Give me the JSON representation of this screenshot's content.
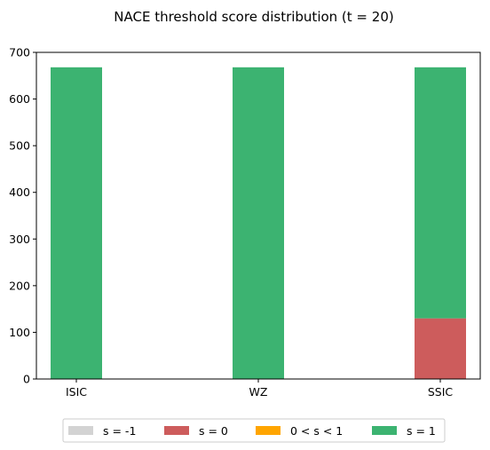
{
  "chart_data": {
    "type": "bar",
    "stacked": true,
    "title": "NACE threshold score distribution (t = 20)",
    "categories": [
      "ISIC",
      "WZ",
      "SSIC"
    ],
    "series": [
      {
        "name": "s = -1",
        "color": "#d3d3d3",
        "values": [
          0,
          0,
          0
        ]
      },
      {
        "name": "s = 0",
        "color": "#cd5c5c",
        "values": [
          0,
          0,
          130
        ]
      },
      {
        "name": "0 < s < 1",
        "color": "#ffa500",
        "values": [
          0,
          0,
          0
        ]
      },
      {
        "name": "s = 1",
        "color": "#3cb371",
        "values": [
          668,
          668,
          538
        ]
      }
    ],
    "ylim": [
      0,
      700
    ],
    "yticks": [
      0,
      100,
      200,
      300,
      400,
      500,
      600,
      700
    ],
    "grid": false,
    "legend_position": "bottom-center"
  }
}
